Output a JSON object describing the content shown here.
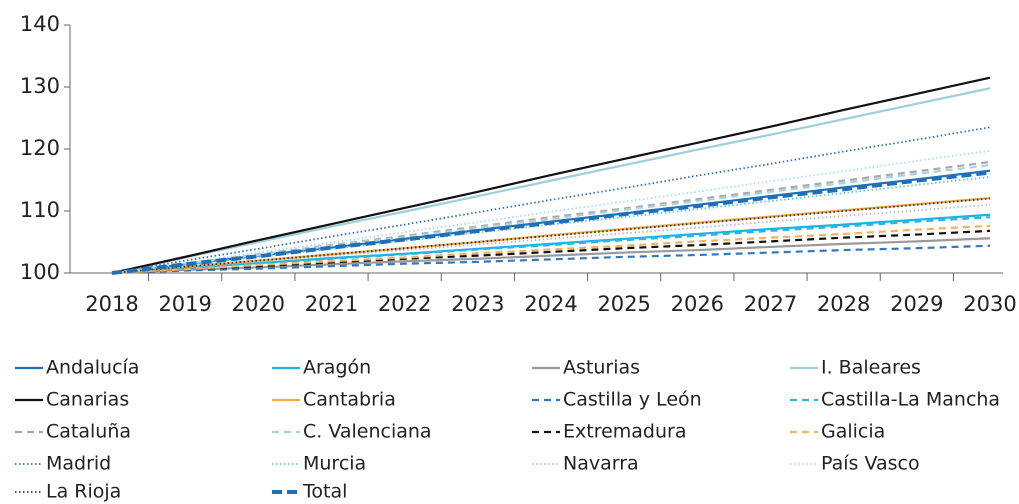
{
  "chart_data": {
    "type": "line",
    "categories": [
      "2018",
      "2019",
      "2020",
      "2021",
      "2022",
      "2023",
      "2024",
      "2025",
      "2026",
      "2027",
      "2028",
      "2029",
      "2030"
    ],
    "ylim": [
      100,
      140
    ],
    "yticks": [
      100,
      110,
      120,
      130,
      140
    ],
    "grid": false,
    "series": [
      {
        "name": "Andalucía",
        "color": "#1f6fb5",
        "style": "solid",
        "values": [
          100,
          101.4,
          102.8,
          104.1,
          105.5,
          106.9,
          108.3,
          109.6,
          111,
          112.4,
          113.8,
          115.1,
          116.5
        ]
      },
      {
        "name": "Aragón",
        "color": "#1ab3e6",
        "style": "solid",
        "values": [
          100,
          100.8,
          101.6,
          102.4,
          103.1,
          103.9,
          104.7,
          105.5,
          106.3,
          107.1,
          107.8,
          108.6,
          109.4
        ]
      },
      {
        "name": "Asturias",
        "color": "#9a9a9a",
        "style": "solid",
        "values": [
          100,
          100.5,
          100.9,
          101.4,
          101.9,
          102.3,
          102.8,
          103.3,
          103.7,
          104.2,
          104.7,
          105.1,
          105.6
        ]
      },
      {
        "name": "I. Baleares",
        "color": "#9fd0d8",
        "style": "solid",
        "values": [
          100,
          102.5,
          105,
          107.5,
          109.9,
          112.4,
          114.9,
          117.4,
          119.9,
          122.3,
          124.8,
          127.3,
          129.8
        ]
      },
      {
        "name": "Canarias",
        "color": "#111111",
        "style": "solid",
        "values": [
          100,
          102.6,
          105.3,
          107.9,
          110.5,
          113.1,
          115.8,
          118.4,
          121,
          123.6,
          126.3,
          128.9,
          131.5
        ]
      },
      {
        "name": "Cantabria",
        "color": "#f0a848",
        "style": "solid",
        "values": [
          100,
          101,
          102,
          103,
          104,
          105,
          106.1,
          107.1,
          108.1,
          109.1,
          110.1,
          111.1,
          112.1
        ]
      },
      {
        "name": "Castilla y León",
        "color": "#2f7ac0",
        "style": "dashed",
        "values": [
          100,
          100.4,
          100.7,
          101.1,
          101.5,
          101.8,
          102.2,
          102.6,
          102.9,
          103.3,
          103.7,
          104,
          104.4
        ]
      },
      {
        "name": "Castilla-La Mancha",
        "color": "#29b6e8",
        "style": "dashed",
        "values": [
          100,
          100.8,
          101.5,
          102.3,
          103,
          103.8,
          104.5,
          105.3,
          106,
          106.8,
          107.5,
          108.3,
          109
        ]
      },
      {
        "name": "Cataluña",
        "color": "#aaaaaa",
        "style": "dashed",
        "values": [
          100,
          101.5,
          103,
          104.5,
          106,
          107.5,
          109,
          110.4,
          111.9,
          113.4,
          114.9,
          116.4,
          117.9
        ]
      },
      {
        "name": "C. Valenciana",
        "color": "#a9d2e0",
        "style": "dashed",
        "values": [
          100,
          101.5,
          102.9,
          104.4,
          105.8,
          107.3,
          108.7,
          110.2,
          111.6,
          113.1,
          114.5,
          116,
          117.4
        ]
      },
      {
        "name": "Extremadura",
        "color": "#111111",
        "style": "dashed",
        "values": [
          100,
          100.6,
          101.1,
          101.7,
          102.3,
          102.8,
          103.4,
          104,
          104.5,
          105.1,
          105.7,
          106.2,
          106.8
        ]
      },
      {
        "name": "Galicia",
        "color": "#f5b060",
        "style": "dashed",
        "values": [
          100,
          100.6,
          101.3,
          101.9,
          102.5,
          103.2,
          103.8,
          104.4,
          105.1,
          105.7,
          106.3,
          107,
          107.6
        ]
      },
      {
        "name": "Madrid",
        "color": "#2f6fc0",
        "style": "dotted",
        "values": [
          100,
          102,
          103.9,
          105.9,
          107.8,
          109.8,
          111.8,
          113.7,
          115.7,
          117.6,
          119.6,
          121.5,
          123.5
        ]
      },
      {
        "name": "Murcia",
        "color": "#5cc8e8",
        "style": "dotted",
        "values": [
          100,
          101.3,
          102.6,
          103.9,
          105.2,
          106.5,
          107.8,
          109,
          110.3,
          111.6,
          112.9,
          114.2,
          115.5
        ]
      },
      {
        "name": "Navarra",
        "color": "#bbbbbb",
        "style": "dotted",
        "values": [
          100,
          100.9,
          101.8,
          102.8,
          103.7,
          104.6,
          105.5,
          106.4,
          107.3,
          108.3,
          109.2,
          110.1,
          111
        ]
      },
      {
        "name": "País Vasco",
        "color": "#a9dbe8",
        "style": "dotted",
        "values": [
          100,
          101.6,
          103.3,
          104.9,
          106.6,
          108.2,
          109.9,
          111.5,
          113.1,
          114.8,
          116.4,
          118.1,
          119.7
        ]
      },
      {
        "name": "La Rioja",
        "color": "#333333",
        "style": "dotted",
        "values": [
          100,
          101,
          102,
          103,
          104,
          105,
          106,
          107,
          108,
          109,
          110,
          111,
          112
        ]
      },
      {
        "name": "Total",
        "color": "#1f6fb5",
        "style": "thick-dashed",
        "values": [
          100,
          101.4,
          102.7,
          104.1,
          105.4,
          106.8,
          108.1,
          109.5,
          110.8,
          112.2,
          113.5,
          114.9,
          116.2
        ]
      }
    ]
  }
}
